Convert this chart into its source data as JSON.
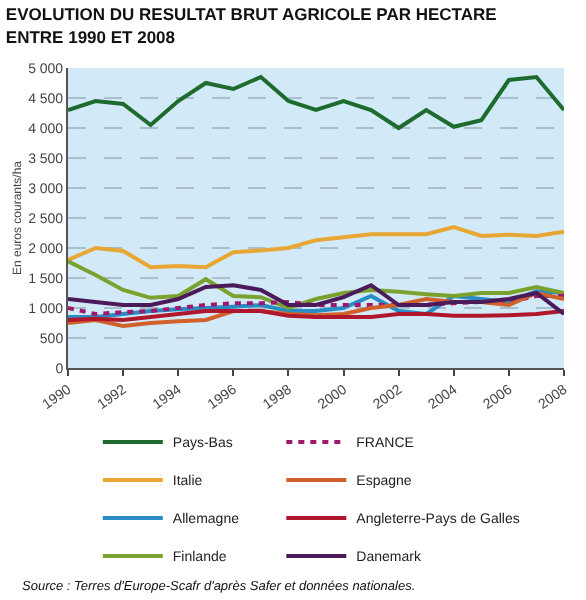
{
  "chart_data": {
    "type": "line",
    "title": "EVOLUTION DU RESULTAT BRUT AGRICOLE PAR HECTARE\nENTRE 1990 ET 2008",
    "ylabel": "En euros courants/ha",
    "x": [
      1990,
      1991,
      1992,
      1993,
      1994,
      1995,
      1996,
      1997,
      1998,
      1999,
      2000,
      2001,
      2002,
      2003,
      2004,
      2005,
      2006,
      2007,
      2008
    ],
    "series": [
      {
        "name": "Pays-Bas",
        "color": "#1e6b30",
        "values": [
          4300,
          4450,
          4400,
          4050,
          4450,
          4750,
          4650,
          4850,
          4450,
          4300,
          4450,
          4300,
          4000,
          4300,
          4020,
          4130,
          4800,
          4850,
          4300
        ]
      },
      {
        "name": "Italie",
        "color": "#e8a735",
        "values": [
          1800,
          2000,
          1950,
          1680,
          1700,
          1680,
          1930,
          1960,
          2000,
          2130,
          2180,
          2230,
          2230,
          2230,
          2350,
          2200,
          2220,
          2200,
          2270
        ]
      },
      {
        "name": "Allemagne",
        "color": "#2a8cc4",
        "values": [
          850,
          850,
          900,
          950,
          980,
          1000,
          1020,
          1050,
          950,
          950,
          1000,
          1200,
          950,
          900,
          1200,
          1150,
          1100,
          1280,
          1250
        ]
      },
      {
        "name": "Finlande",
        "color": "#7ba12e",
        "values": [
          1780,
          1550,
          1300,
          1170,
          1200,
          1480,
          1200,
          1180,
          1000,
          1150,
          1250,
          1300,
          1270,
          1230,
          1200,
          1250,
          1250,
          1350,
          1250
        ]
      },
      {
        "name": "FRANCE",
        "color": "#a0186e",
        "line_style": "dotted",
        "values": [
          1000,
          900,
          930,
          950,
          1000,
          1050,
          1080,
          1080,
          1100,
          1050,
          1050,
          1050,
          1050,
          1050,
          1080,
          1100,
          1100,
          1200,
          1200
        ]
      },
      {
        "name": "Espagne",
        "color": "#d2602a",
        "values": [
          750,
          800,
          700,
          750,
          780,
          800,
          950,
          950,
          900,
          880,
          900,
          1000,
          1050,
          1150,
          1100,
          1100,
          1050,
          1250,
          1150
        ]
      },
      {
        "name": "Angleterre-Pays de Galles",
        "color": "#b0172c",
        "values": [
          800,
          820,
          800,
          850,
          900,
          950,
          950,
          950,
          870,
          850,
          850,
          850,
          900,
          900,
          870,
          870,
          880,
          900,
          950
        ]
      },
      {
        "name": "Danemark",
        "color": "#4a1a5a",
        "values": [
          1150,
          1100,
          1050,
          1050,
          1150,
          1350,
          1380,
          1300,
          1050,
          1050,
          1180,
          1380,
          1050,
          1050,
          1100,
          1100,
          1150,
          1250,
          900
        ]
      }
    ],
    "xlim": [
      1990,
      2008
    ],
    "xticks": [
      1990,
      1992,
      1994,
      1996,
      1998,
      2000,
      2002,
      2004,
      2006,
      2008
    ],
    "ylim": [
      0,
      5000
    ],
    "yticks": [
      {
        "value": 0,
        "label": "0"
      },
      {
        "value": 500,
        "label": "500"
      },
      {
        "value": 1000,
        "label": "1 000"
      },
      {
        "value": 1500,
        "label": "1 500"
      },
      {
        "value": 2000,
        "label": "2 000"
      },
      {
        "value": 2500,
        "label": "2 500"
      },
      {
        "value": 3000,
        "label": "3 000"
      },
      {
        "value": 3500,
        "label": "3 500"
      },
      {
        "value": 4000,
        "label": "4 000"
      },
      {
        "value": 4500,
        "label": "4 500"
      },
      {
        "value": 5000,
        "label": "5 000"
      }
    ],
    "grid": "y",
    "legend": "bottom",
    "annotations": [
      "Source : Terres d'Europe-Scafr d'après Safer et données nationales."
    ]
  }
}
